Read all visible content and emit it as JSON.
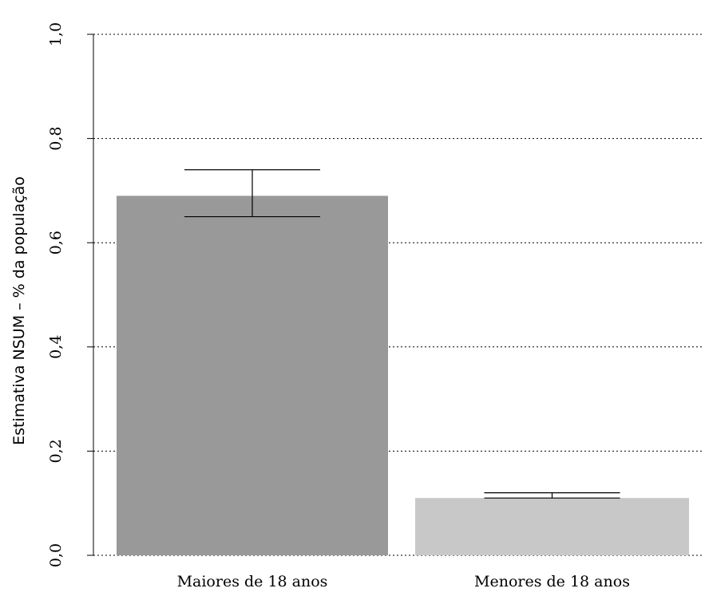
{
  "chart_data": {
    "type": "bar",
    "title": "",
    "xlabel": "",
    "ylabel": "Estimativa NSUM – % da população",
    "categories": [
      "Maiores de 18 anos",
      "Menores de 18 anos"
    ],
    "values": [
      0.69,
      0.11
    ],
    "error_bars": [
      {
        "lower": 0.65,
        "upper": 0.74
      },
      {
        "lower": 0.11,
        "upper": 0.12
      }
    ],
    "bar_colors": [
      "#999999",
      "#c8c8c8"
    ],
    "ylim": [
      0,
      1
    ],
    "yticks": [
      0.0,
      0.2,
      0.4,
      0.6,
      0.8,
      1.0
    ],
    "ytick_labels": [
      "0,0",
      "0,2",
      "0,4",
      "0,6",
      "0,8",
      "1,0"
    ],
    "grid": true,
    "legend": "none"
  }
}
